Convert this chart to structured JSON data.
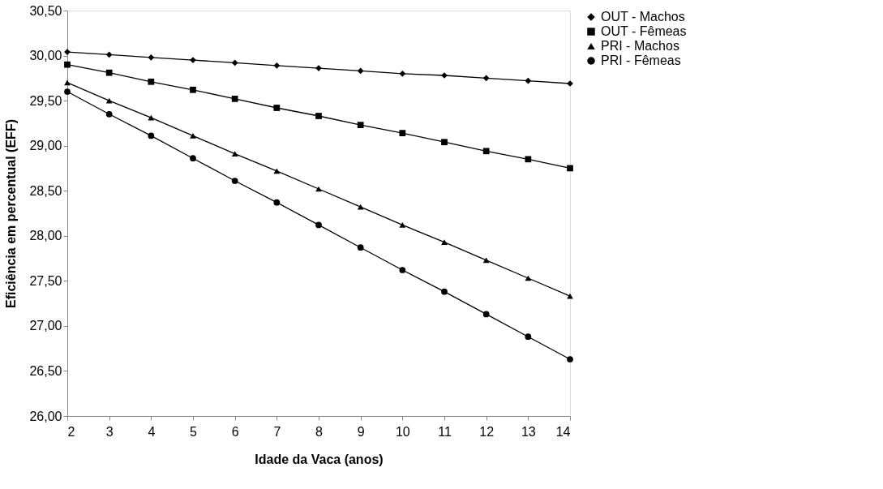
{
  "chart_data": {
    "type": "line",
    "xlabel": "Idade da Vaca (anos)",
    "ylabel": "Eficiência  em percentual (EFF)",
    "x": [
      2,
      3,
      4,
      5,
      6,
      7,
      8,
      9,
      10,
      11,
      12,
      13,
      14
    ],
    "series": [
      {
        "name": "OUT - Machos",
        "color": "#000000",
        "marker": "diamond",
        "values": [
          30.04,
          30.01,
          29.98,
          29.95,
          29.92,
          29.89,
          29.86,
          29.83,
          29.8,
          29.78,
          29.75,
          29.72,
          29.69
        ]
      },
      {
        "name": "OUT - Fêmeas",
        "color": "#000000",
        "marker": "square",
        "values": [
          29.9,
          29.81,
          29.71,
          29.62,
          29.52,
          29.42,
          29.33,
          29.23,
          29.14,
          29.04,
          28.94,
          28.85,
          28.75
        ]
      },
      {
        "name": "PRI - Machos",
        "color": "#000000",
        "marker": "triangle",
        "values": [
          29.7,
          29.5,
          29.31,
          29.11,
          28.91,
          28.72,
          28.52,
          28.32,
          28.12,
          27.93,
          27.73,
          27.53,
          27.33
        ]
      },
      {
        "name": "PRI - Fêmeas",
        "color": "#000000",
        "marker": "circle",
        "values": [
          29.6,
          29.35,
          29.11,
          28.86,
          28.61,
          28.37,
          28.12,
          27.87,
          27.62,
          27.38,
          27.13,
          26.88,
          26.63
        ]
      }
    ],
    "xlim": [
      2,
      14
    ],
    "xticks": [
      2,
      3,
      4,
      5,
      6,
      7,
      8,
      9,
      10,
      11,
      12,
      13,
      14
    ],
    "ylim": [
      26,
      30.5
    ],
    "yticks": [
      {
        "value": 26,
        "label": "26,00"
      },
      {
        "value": 26.5,
        "label": "26,50"
      },
      {
        "value": 27,
        "label": "27,00"
      },
      {
        "value": 27.5,
        "label": "27,50"
      },
      {
        "value": 28,
        "label": "28,00"
      },
      {
        "value": 28.5,
        "label": "28,50"
      },
      {
        "value": 29,
        "label": "29,00"
      },
      {
        "value": 29.5,
        "label": "29,50"
      },
      {
        "value": 30,
        "label": "30,00"
      },
      {
        "value": 30.5,
        "label": "30,50"
      }
    ],
    "grid": false,
    "legend": "right",
    "line_style": "solid"
  }
}
